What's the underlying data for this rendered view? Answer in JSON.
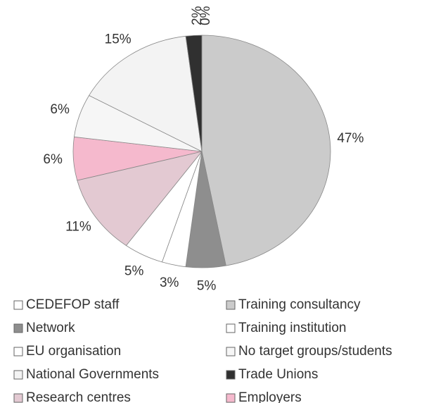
{
  "chart_data": {
    "type": "pie",
    "categories": [
      "CEDEFOP staff",
      "Training consultancy",
      "Network",
      "Training institution",
      "EU organisation",
      "Research centres",
      "Employers",
      "No target groups/students",
      "National Governments",
      "Trade Unions"
    ],
    "values": [
      0,
      47,
      5,
      3,
      5,
      11,
      6,
      6,
      15,
      2
    ],
    "value_labels": [
      "0%",
      "47%",
      "5%",
      "3%",
      "5%",
      "11%",
      "6%",
      "6%",
      "15%",
      "2%"
    ],
    "colors": [
      "#ffffff",
      "#cbcbcb",
      "#8e8e8e",
      "#ffffff",
      "#ffffff",
      "#e3c9d2",
      "#f5b9cd",
      "#f6f6f6",
      "#f3f3f3",
      "#303030"
    ]
  }
}
